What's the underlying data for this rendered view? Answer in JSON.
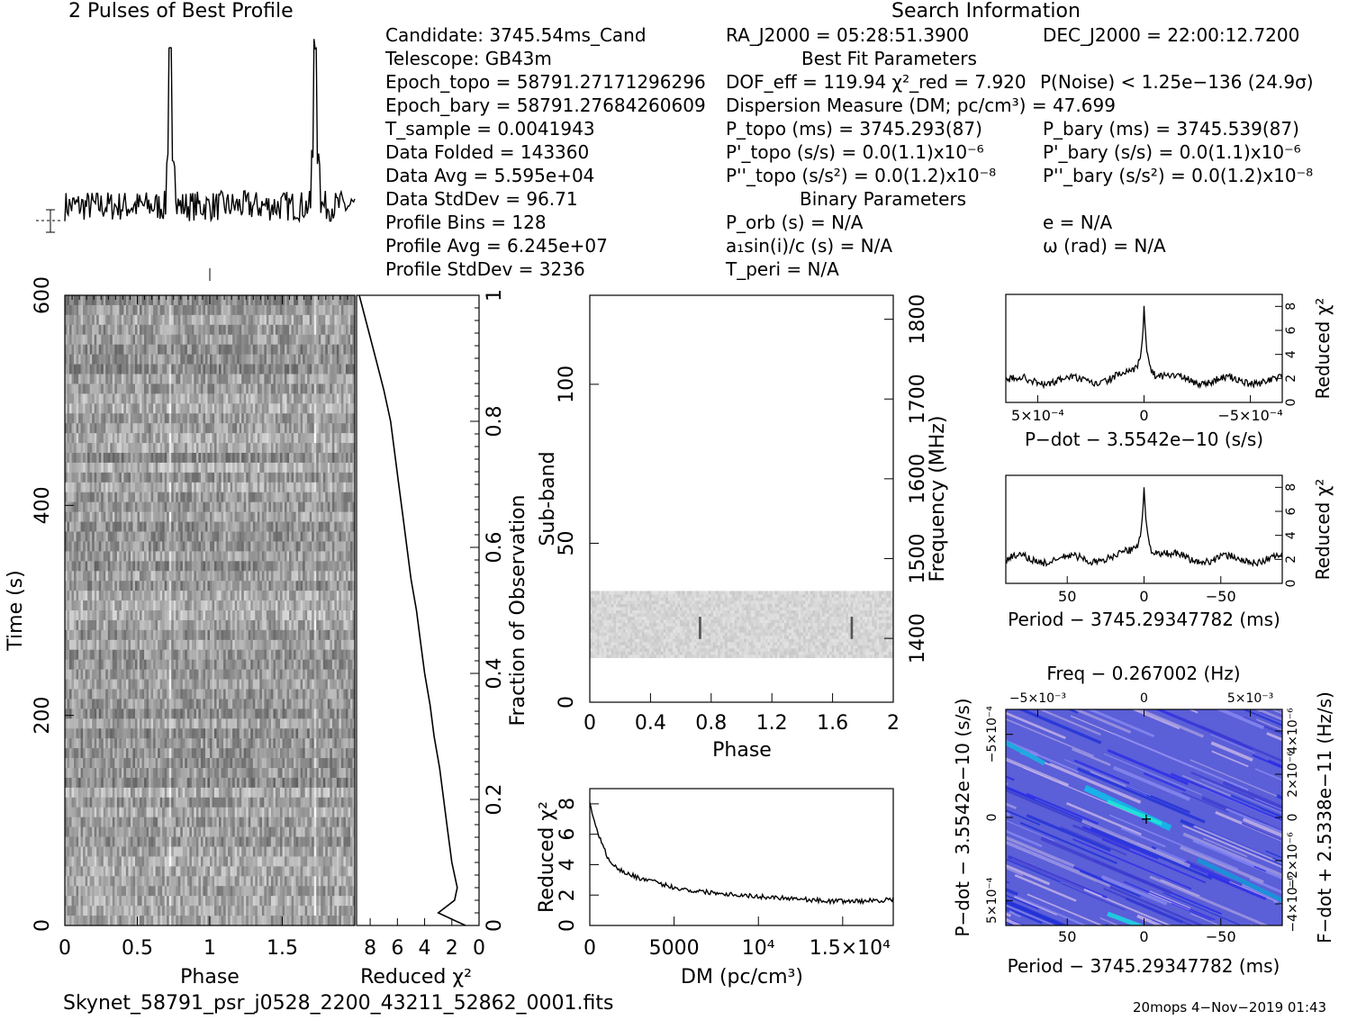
{
  "profile": {
    "title": "2 Pulses of Best Profile",
    "chart_data": {
      "type": "line",
      "x_label": "",
      "y_label": "",
      "x_range": [
        0,
        2
      ],
      "peak_phases": [
        0.73,
        1.73
      ],
      "peak_level": 1.0,
      "baseline": 0.22,
      "noise": 0.07
    }
  },
  "search_info": {
    "title": "Search Information",
    "col1": [
      "Candidate:   3745.54ms_Cand",
      "Telescope:   GB43m",
      "Epoch_topo = 58791.27171296296",
      "Epoch_bary = 58791.27684260609",
      "T_sample        =   0.0041943",
      "Data Folded     =   143360",
      "Data Avg        =   5.595e+04",
      "Data StdDev     =   96.71",
      "Profile Bins    =   128",
      "Profile Avg     =   6.245e+07",
      "Profile StdDev  =   3236"
    ],
    "ra": "RA_J2000 = 05:28:51.3900",
    "dec": "DEC_J2000 = 22:00:12.7200",
    "best_fit_title": "Best Fit Parameters",
    "dof": "DOF_eff = 119.94   χ²_red = 7.920",
    "noise": "P(Noise) < 1.25e−136   (24.9σ)",
    "dm": "Dispersion Measure (DM; pc/cm³) = 47.699",
    "p_topo": "P_topo (ms) =  3745.293(87)",
    "p_bary": "P_bary (ms) =  3745.539(87)",
    "pd_topo": "P'_topo (s/s) = 0.0(1.1)x10⁻⁶",
    "pd_bary": "P'_bary (s/s) = 0.0(1.1)x10⁻⁶",
    "pdd_topo": "P''_topo (s/s²) = 0.0(1.2)x10⁻⁸",
    "pdd_bary": "P''_bary (s/s²) = 0.0(1.2)x10⁻⁸",
    "binary_title": "Binary Parameters",
    "porb": "P_orb (s) = N/A",
    "e": "e = N/A",
    "a1sini": "a₁sin(i)/c (s) = N/A",
    "omega": "ω (rad) = N/A",
    "tperi": "T_peri = N/A"
  },
  "time_phase": {
    "chart_data": {
      "type": "heatmap",
      "x_label": "Phase",
      "y_label": "Time (s)",
      "x_ticks": [
        "0",
        "0.5",
        "1",
        "1.5"
      ],
      "y_ticks": [
        "0",
        "200",
        "400",
        "600"
      ],
      "x_range": [
        0,
        2
      ],
      "y_range": [
        0,
        600
      ],
      "n_rows": 64,
      "n_cols": 128,
      "pulse_phases": [
        0.73,
        1.73
      ]
    }
  },
  "redchi_time": {
    "chart_data": {
      "type": "line",
      "x_label": "Reduced χ²",
      "y_label": "Fraction of Observation",
      "x_ticks": [
        "8",
        "6",
        "4",
        "2",
        "0"
      ],
      "y_ticks": [
        "0",
        "0.2",
        "0.4",
        "0.6",
        "0.8",
        "1"
      ],
      "x_range": [
        9,
        0
      ],
      "fraction": [
        0.0,
        0.02,
        0.04,
        0.06,
        0.08,
        0.1,
        0.15,
        0.2,
        0.25,
        0.3,
        0.35,
        0.4,
        0.45,
        0.5,
        0.55,
        0.6,
        0.65,
        0.7,
        0.75,
        0.8,
        0.85,
        0.9,
        0.95,
        1.0
      ],
      "redchi": [
        1.0,
        3.0,
        1.8,
        1.6,
        1.8,
        2.0,
        2.3,
        2.6,
        2.9,
        3.3,
        3.6,
        4.0,
        4.3,
        4.6,
        5.0,
        5.3,
        5.6,
        5.9,
        6.2,
        6.5,
        7.0,
        7.6,
        8.2,
        8.8
      ]
    }
  },
  "subband": {
    "chart_data": {
      "type": "heatmap",
      "x_label": "Phase",
      "y_label": "Sub-band",
      "y2_label": "Frequency (MHz)",
      "x_ticks": [
        "0",
        "0.4",
        "0.8",
        "1.2",
        "1.6",
        "2"
      ],
      "y_ticks": [
        "0",
        "50",
        "100"
      ],
      "y2_ticks": [
        "1400",
        "1500",
        "1600",
        "1700",
        "1800"
      ],
      "x_range": [
        0,
        2
      ],
      "y_range": [
        0,
        128
      ],
      "freq_range_mhz": [
        1320,
        1830
      ],
      "occupied_subbands": [
        14,
        35
      ],
      "pulse_phases": [
        0.73,
        1.73
      ]
    }
  },
  "dm_curve": {
    "chart_data": {
      "type": "line",
      "x_label": "DM (pc/cm³)",
      "y_label": "Reduced χ²",
      "x_ticks": [
        "0",
        "5000",
        "10⁴",
        "1.5×10⁴"
      ],
      "y_ticks": [
        "0",
        "2",
        "4",
        "6",
        "8"
      ],
      "x_range": [
        0,
        18000
      ],
      "y_range": [
        0,
        9
      ],
      "dm": [
        0,
        200,
        500,
        1000,
        1500,
        2000,
        3000,
        4000,
        5000,
        6000,
        8000,
        10000,
        12000,
        14000,
        16000,
        18000
      ],
      "redchi": [
        8.1,
        7.2,
        6.0,
        4.6,
        3.9,
        3.5,
        3.1,
        2.8,
        2.5,
        2.3,
        2.1,
        1.9,
        1.8,
        1.6,
        1.6,
        1.7
      ]
    }
  },
  "pdot_curve": {
    "chart_data": {
      "type": "line",
      "x_label": "P−dot − 3.5542e−10 (s/s)",
      "y_label": "Reduced χ²",
      "x_ticks": [
        "5×10⁻⁴",
        "0",
        "−5×10⁻⁴"
      ],
      "y_ticks": [
        "0",
        "2",
        "4",
        "6",
        "8"
      ],
      "x_range": [
        0.00065,
        -0.00065
      ],
      "y_range": [
        0,
        9
      ],
      "peak": 7.9,
      "baseline": 1.8
    }
  },
  "period_curve": {
    "chart_data": {
      "type": "line",
      "x_label": "Period − 3745.29347782 (ms)",
      "y_label": "Reduced χ²",
      "x_ticks": [
        "50",
        "0",
        "−50"
      ],
      "y_ticks": [
        "0",
        "2",
        "4",
        "6",
        "8"
      ],
      "x_range": [
        90,
        -90
      ],
      "y_range": [
        0,
        9
      ],
      "peak": 7.9,
      "baseline": 2.0
    }
  },
  "pp_dot": {
    "title": "Freq − 0.267002 (Hz)",
    "chart_data": {
      "type": "heatmap",
      "x_label": "Period − 3745.29347782 (ms)",
      "y_label": "P−dot − 3.5542e−10 (s/s)",
      "y2_label": "F−dot + 2.5338e−11 (Hz/s)",
      "x_ticks": [
        "50",
        "0",
        "−50"
      ],
      "top_ticks": [
        "−5×10⁻³",
        "0",
        "5×10⁻³"
      ],
      "y_ticks": [
        "−5×10⁻⁴",
        "0",
        "5×10⁻⁴"
      ],
      "y2_ticks": [
        "4×10⁻⁶",
        "2×10⁻⁶",
        "0",
        "−2×10⁻⁶",
        "−4×10⁻⁶"
      ]
    }
  },
  "footer": {
    "filename": "Skynet_58791_psr_j0528_2200_43211_52862_0001.fits",
    "stamp": "20mops   4−Nov−2019 01:43"
  }
}
